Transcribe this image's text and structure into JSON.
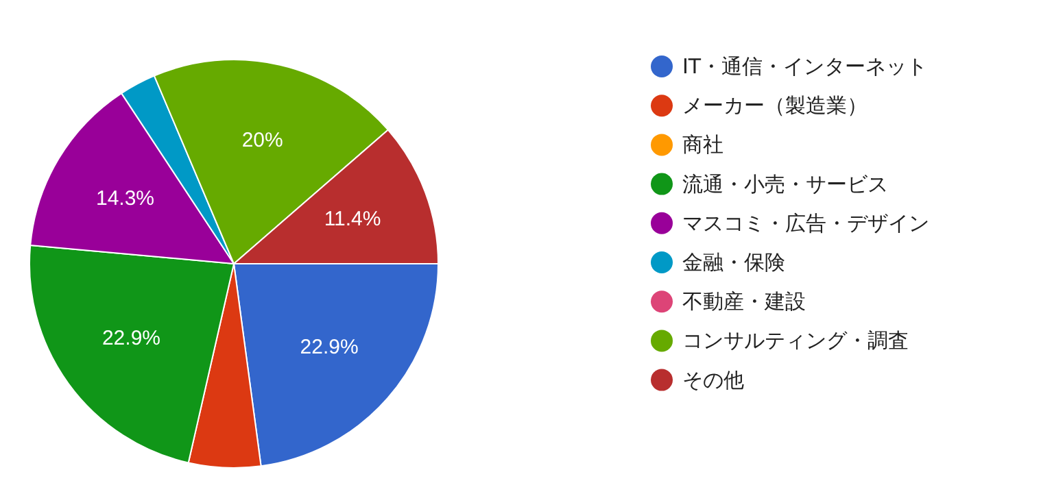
{
  "chart_data": {
    "type": "pie",
    "categories": [
      "IT・通信・インターネット",
      "メーカー（製造業）",
      "商社",
      "流通・小売・サービス",
      "マスコミ・広告・デザイン",
      "金融・保険",
      "不動産・建設",
      "コンサルティング・調査",
      "その他"
    ],
    "values": [
      22.9,
      5.7,
      0,
      22.9,
      14.3,
      2.9,
      0,
      20,
      11.4
    ],
    "colors": [
      "#3366cc",
      "#dc3912",
      "#ff9900",
      "#109618",
      "#990099",
      "#0099c6",
      "#dd4477",
      "#66aa00",
      "#b82e2e"
    ],
    "value_labels": [
      "22.9%",
      null,
      null,
      "22.9%",
      "14.3%",
      null,
      null,
      "20%",
      "11.4%"
    ],
    "legend": "right"
  }
}
